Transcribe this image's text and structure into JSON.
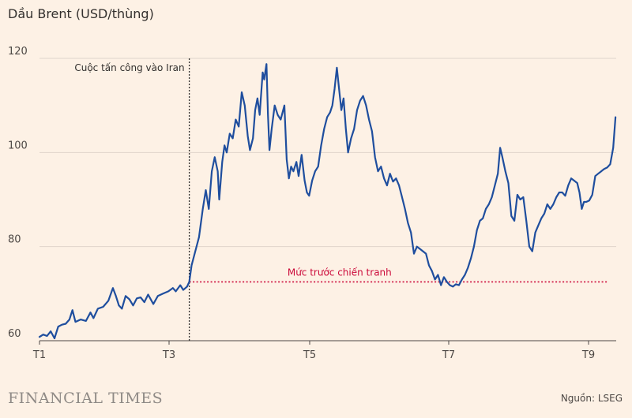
{
  "chart_data": {
    "type": "line",
    "title": "Dầu Brent (USD/thùng)",
    "source": "Nguồn: LSEG",
    "brand": "FINANCIAL TIMES",
    "x_ticks": [
      "T1",
      "T3",
      "T5",
      "T7",
      "T9"
    ],
    "ylim": [
      60,
      120
    ],
    "y_ticks": [
      60,
      80,
      100,
      120
    ],
    "grid": "horizontal",
    "colors": {
      "line": "#1f4e9e",
      "reference": "#cc0a3a",
      "grid": "#e0d5ca",
      "event": "#33302e"
    },
    "event_marker": {
      "x": 2,
      "label": "Cuộc tấn công vào Iran"
    },
    "reference_line": {
      "y": 72.5,
      "label": "Mức trước chiến tranh",
      "x_start": 2
    },
    "series": [
      {
        "values": [
          [
            0.0,
            60.8
          ],
          [
            0.05,
            61.3
          ],
          [
            0.1,
            61.0
          ],
          [
            0.15,
            62.0
          ],
          [
            0.2,
            60.5
          ],
          [
            0.25,
            63.0
          ],
          [
            0.3,
            63.4
          ],
          [
            0.35,
            63.6
          ],
          [
            0.4,
            64.5
          ],
          [
            0.44,
            66.5
          ],
          [
            0.48,
            64.0
          ],
          [
            0.55,
            64.5
          ],
          [
            0.62,
            64.2
          ],
          [
            0.68,
            66.0
          ],
          [
            0.72,
            64.8
          ],
          [
            0.78,
            66.8
          ],
          [
            0.85,
            67.2
          ],
          [
            0.92,
            68.5
          ],
          [
            0.98,
            71.2
          ],
          [
            1.02,
            69.5
          ],
          [
            1.06,
            67.5
          ],
          [
            1.1,
            66.8
          ],
          [
            1.15,
            69.5
          ],
          [
            1.2,
            68.8
          ],
          [
            1.25,
            67.5
          ],
          [
            1.3,
            69.0
          ],
          [
            1.35,
            69.2
          ],
          [
            1.4,
            68.2
          ],
          [
            1.45,
            69.8
          ],
          [
            1.52,
            67.8
          ],
          [
            1.58,
            69.5
          ],
          [
            1.65,
            70.0
          ],
          [
            1.72,
            70.5
          ],
          [
            1.78,
            71.2
          ],
          [
            1.82,
            70.5
          ],
          [
            1.88,
            71.8
          ],
          [
            1.92,
            70.8
          ],
          [
            1.97,
            71.5
          ],
          [
            2.0,
            72.5
          ],
          [
            2.03,
            76.0
          ],
          [
            2.08,
            79.0
          ],
          [
            2.13,
            82.0
          ],
          [
            2.18,
            88.0
          ],
          [
            2.22,
            92.0
          ],
          [
            2.26,
            88.0
          ],
          [
            2.3,
            96.0
          ],
          [
            2.34,
            99.0
          ],
          [
            2.38,
            96.0
          ],
          [
            2.4,
            90.0
          ],
          [
            2.44,
            98.0
          ],
          [
            2.47,
            101.5
          ],
          [
            2.5,
            100.0
          ],
          [
            2.54,
            104.0
          ],
          [
            2.58,
            103.0
          ],
          [
            2.62,
            107.0
          ],
          [
            2.66,
            105.5
          ],
          [
            2.7,
            112.8
          ],
          [
            2.74,
            110.0
          ],
          [
            2.78,
            103.5
          ],
          [
            2.81,
            100.5
          ],
          [
            2.85,
            103.0
          ],
          [
            2.88,
            109.0
          ],
          [
            2.91,
            111.5
          ],
          [
            2.94,
            108.0
          ],
          [
            2.98,
            117.0
          ],
          [
            3.0,
            115.5
          ],
          [
            3.03,
            118.8
          ],
          [
            3.05,
            108.0
          ],
          [
            3.07,
            100.5
          ],
          [
            3.1,
            105.0
          ],
          [
            3.14,
            110.0
          ],
          [
            3.18,
            108.0
          ],
          [
            3.22,
            107.0
          ],
          [
            3.27,
            110.0
          ],
          [
            3.3,
            98.5
          ],
          [
            3.33,
            94.5
          ],
          [
            3.36,
            97.0
          ],
          [
            3.39,
            96.0
          ],
          [
            3.43,
            98.0
          ],
          [
            3.46,
            95.0
          ],
          [
            3.5,
            99.5
          ],
          [
            3.54,
            94.0
          ],
          [
            3.57,
            91.5
          ],
          [
            3.6,
            90.8
          ],
          [
            3.64,
            94.0
          ],
          [
            3.68,
            96.0
          ],
          [
            3.72,
            97.0
          ],
          [
            3.76,
            101.5
          ],
          [
            3.8,
            105.0
          ],
          [
            3.84,
            107.5
          ],
          [
            3.88,
            108.5
          ],
          [
            3.91,
            110.0
          ],
          [
            3.94,
            113.5
          ],
          [
            3.97,
            118.0
          ],
          [
            4.0,
            113.5
          ],
          [
            4.03,
            109.0
          ],
          [
            4.06,
            111.5
          ],
          [
            4.09,
            105.0
          ],
          [
            4.12,
            100.0
          ],
          [
            4.16,
            103.0
          ],
          [
            4.2,
            105.0
          ],
          [
            4.24,
            109.0
          ],
          [
            4.28,
            111.0
          ],
          [
            4.32,
            112.0
          ],
          [
            4.36,
            110.0
          ],
          [
            4.4,
            107.0
          ],
          [
            4.44,
            104.5
          ],
          [
            4.48,
            99.0
          ],
          [
            4.52,
            96.0
          ],
          [
            4.56,
            97.0
          ],
          [
            4.6,
            94.5
          ],
          [
            4.64,
            93.0
          ],
          [
            4.68,
            95.5
          ],
          [
            4.72,
            93.8
          ],
          [
            4.76,
            94.5
          ],
          [
            4.8,
            93.0
          ],
          [
            4.84,
            90.5
          ],
          [
            4.88,
            88.0
          ],
          [
            4.92,
            85.0
          ],
          [
            4.96,
            83.0
          ],
          [
            5.0,
            78.5
          ],
          [
            5.04,
            80.0
          ],
          [
            5.08,
            79.5
          ],
          [
            5.12,
            79.0
          ],
          [
            5.16,
            78.5
          ],
          [
            5.2,
            76.0
          ],
          [
            5.24,
            74.8
          ],
          [
            5.28,
            73.0
          ],
          [
            5.32,
            74.0
          ],
          [
            5.36,
            71.8
          ],
          [
            5.4,
            73.5
          ],
          [
            5.44,
            72.5
          ],
          [
            5.48,
            71.8
          ],
          [
            5.52,
            71.5
          ],
          [
            5.56,
            72.0
          ],
          [
            5.6,
            71.8
          ],
          [
            5.64,
            73.0
          ],
          [
            5.68,
            74.0
          ],
          [
            5.72,
            75.5
          ],
          [
            5.76,
            77.5
          ],
          [
            5.8,
            80.0
          ],
          [
            5.84,
            83.5
          ],
          [
            5.88,
            85.5
          ],
          [
            5.92,
            86.0
          ],
          [
            5.96,
            88.0
          ],
          [
            6.0,
            89.0
          ],
          [
            6.04,
            90.5
          ],
          [
            6.08,
            93.0
          ],
          [
            6.12,
            95.5
          ],
          [
            6.15,
            101.0
          ],
          [
            6.18,
            99.0
          ],
          [
            6.22,
            96.0
          ],
          [
            6.26,
            93.5
          ],
          [
            6.3,
            86.5
          ],
          [
            6.34,
            85.5
          ],
          [
            6.38,
            91.0
          ],
          [
            6.42,
            90.0
          ],
          [
            6.46,
            90.5
          ],
          [
            6.5,
            85.5
          ],
          [
            6.54,
            80.0
          ],
          [
            6.58,
            79.0
          ],
          [
            6.62,
            83.0
          ],
          [
            6.66,
            84.5
          ],
          [
            6.7,
            86.0
          ],
          [
            6.74,
            87.0
          ],
          [
            6.78,
            89.0
          ],
          [
            6.82,
            88.0
          ],
          [
            6.86,
            89.0
          ],
          [
            6.9,
            90.5
          ],
          [
            6.94,
            91.5
          ],
          [
            6.98,
            91.5
          ],
          [
            7.02,
            90.8
          ],
          [
            7.06,
            93.0
          ],
          [
            7.1,
            94.5
          ],
          [
            7.14,
            94.0
          ],
          [
            7.18,
            93.5
          ],
          [
            7.21,
            91.5
          ],
          [
            7.24,
            88.0
          ],
          [
            7.27,
            89.5
          ],
          [
            7.3,
            89.5
          ],
          [
            7.34,
            89.8
          ],
          [
            7.38,
            91.0
          ],
          [
            7.42,
            95.0
          ],
          [
            7.46,
            95.5
          ],
          [
            7.5,
            96.0
          ],
          [
            7.54,
            96.5
          ],
          [
            7.58,
            96.8
          ],
          [
            7.62,
            97.5
          ],
          [
            7.66,
            101.0
          ],
          [
            7.69,
            107.5
          ]
        ]
      }
    ]
  }
}
